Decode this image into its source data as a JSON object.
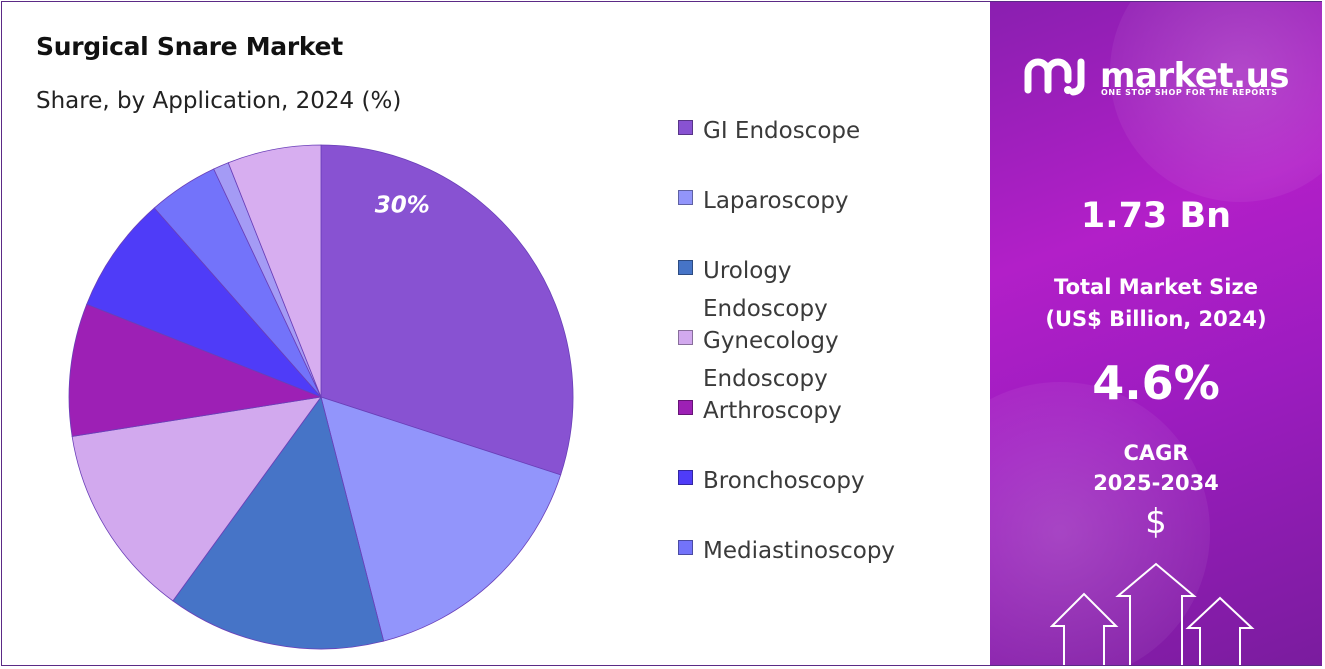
{
  "title": "Surgical Snare Market",
  "subtitle": "Share, by Application, 2024 (%)",
  "chart_data": {
    "type": "pie",
    "title": "Surgical Snare Market",
    "subtitle": "Share, by Application, 2024 (%)",
    "legend_position": "right",
    "start_angle_deg": 0,
    "direction": "clockwise",
    "slices": [
      {
        "name": "GI Endoscope",
        "value": 30,
        "color": "#8852d2",
        "label": "30%"
      },
      {
        "name": "Laparoscopy",
        "value": 16,
        "color": "#9295fb",
        "label": ""
      },
      {
        "name": "Urology Endoscopy",
        "value": 14,
        "color": "#4674c7",
        "label": ""
      },
      {
        "name": "Gynecology Endoscopy",
        "value": 12.5,
        "color": "#d2a9ee",
        "label": ""
      },
      {
        "name": "Arthroscopy",
        "value": 8.5,
        "color": "#9d20b5",
        "label": ""
      },
      {
        "name": "Bronchoscopy",
        "value": 7.5,
        "color": "#4f3cf8",
        "label": ""
      },
      {
        "name": "Mediastinoscopy",
        "value": 4.5,
        "color": "#7373fa",
        "label": ""
      },
      {
        "name": "",
        "value": 1,
        "color": "#a49bf5",
        "label": ""
      },
      {
        "name": "",
        "value": 6,
        "color": "#d7aef0",
        "label": ""
      }
    ]
  },
  "legend": [
    {
      "label": "GI Endoscope",
      "color": "#8852d2"
    },
    {
      "label": "Laparoscopy",
      "color": "#9295fb"
    },
    {
      "label": "Urology Endoscopy",
      "color": "#4674c7"
    },
    {
      "label": "Gynecology Endoscopy",
      "color": "#d2a9ee"
    },
    {
      "label": "Arthroscopy",
      "color": "#9d20b5"
    },
    {
      "label": "Bronchoscopy",
      "color": "#4f3cf8"
    },
    {
      "label": "Mediastinoscopy",
      "color": "#7373fa"
    }
  ],
  "panel": {
    "brand": "market.us",
    "tagline": "ONE STOP SHOP FOR THE REPORTS",
    "market_size": "1.73 Bn",
    "market_size_label_1": "Total Market Size",
    "market_size_label_2": "(US$ Billion, 2024)",
    "cagr": "4.6%",
    "cagr_label_1": "CAGR",
    "cagr_label_2": "2025-2034",
    "currency_symbol": "$",
    "logo_icon": "market-us-logo-icon",
    "decor_icon": "up-arrows-icon"
  }
}
